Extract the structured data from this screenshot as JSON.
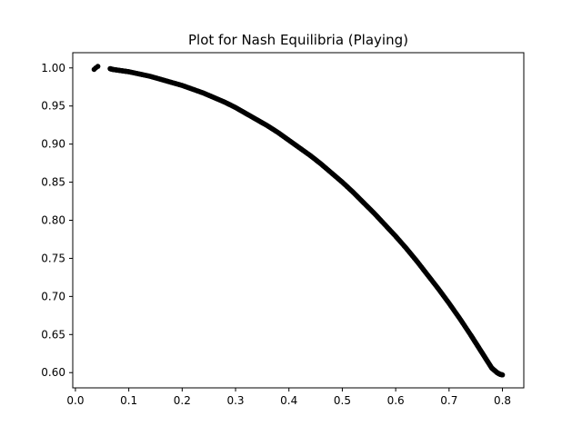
{
  "chart_data": {
    "type": "scatter",
    "title": "Plot for Nash Equilibria (Playing)",
    "xlabel": "",
    "ylabel": "",
    "xlim": [
      -0.005,
      0.84
    ],
    "ylim": [
      0.58,
      1.02
    ],
    "xticks": [
      0.0,
      0.1,
      0.2,
      0.3,
      0.4,
      0.5,
      0.6,
      0.7,
      0.8
    ],
    "xtick_labels": [
      "0.0",
      "0.1",
      "0.2",
      "0.3",
      "0.4",
      "0.5",
      "0.6",
      "0.7",
      "0.8"
    ],
    "yticks": [
      0.6,
      0.65,
      0.7,
      0.75,
      0.8,
      0.85,
      0.9,
      0.95,
      1.0
    ],
    "ytick_labels": [
      "0.60",
      "0.65",
      "0.70",
      "0.75",
      "0.80",
      "0.85",
      "0.90",
      "0.95",
      "1.00"
    ],
    "grid": false,
    "marker_color": "#000000",
    "series": [
      {
        "x": [
          0.035,
          0.038,
          0.042,
          0.065,
          0.07,
          0.08,
          0.09,
          0.1,
          0.12,
          0.14,
          0.16,
          0.18,
          0.2,
          0.22,
          0.24,
          0.26,
          0.28,
          0.3,
          0.32,
          0.34,
          0.36,
          0.38,
          0.4,
          0.42,
          0.44,
          0.46,
          0.48,
          0.5,
          0.52,
          0.54,
          0.56,
          0.58,
          0.6,
          0.62,
          0.64,
          0.66,
          0.68,
          0.7,
          0.72,
          0.74,
          0.75,
          0.76,
          0.77,
          0.78,
          0.79,
          0.795,
          0.8
        ],
        "y": [
          0.998,
          1.0,
          1.002,
          0.999,
          0.998,
          0.997,
          0.996,
          0.995,
          0.992,
          0.989,
          0.985,
          0.981,
          0.977,
          0.972,
          0.967,
          0.961,
          0.955,
          0.948,
          0.94,
          0.932,
          0.924,
          0.915,
          0.905,
          0.895,
          0.885,
          0.874,
          0.862,
          0.85,
          0.837,
          0.823,
          0.809,
          0.794,
          0.779,
          0.763,
          0.746,
          0.728,
          0.71,
          0.691,
          0.671,
          0.65,
          0.639,
          0.628,
          0.617,
          0.606,
          0.6,
          0.598,
          0.597
        ]
      }
    ]
  }
}
